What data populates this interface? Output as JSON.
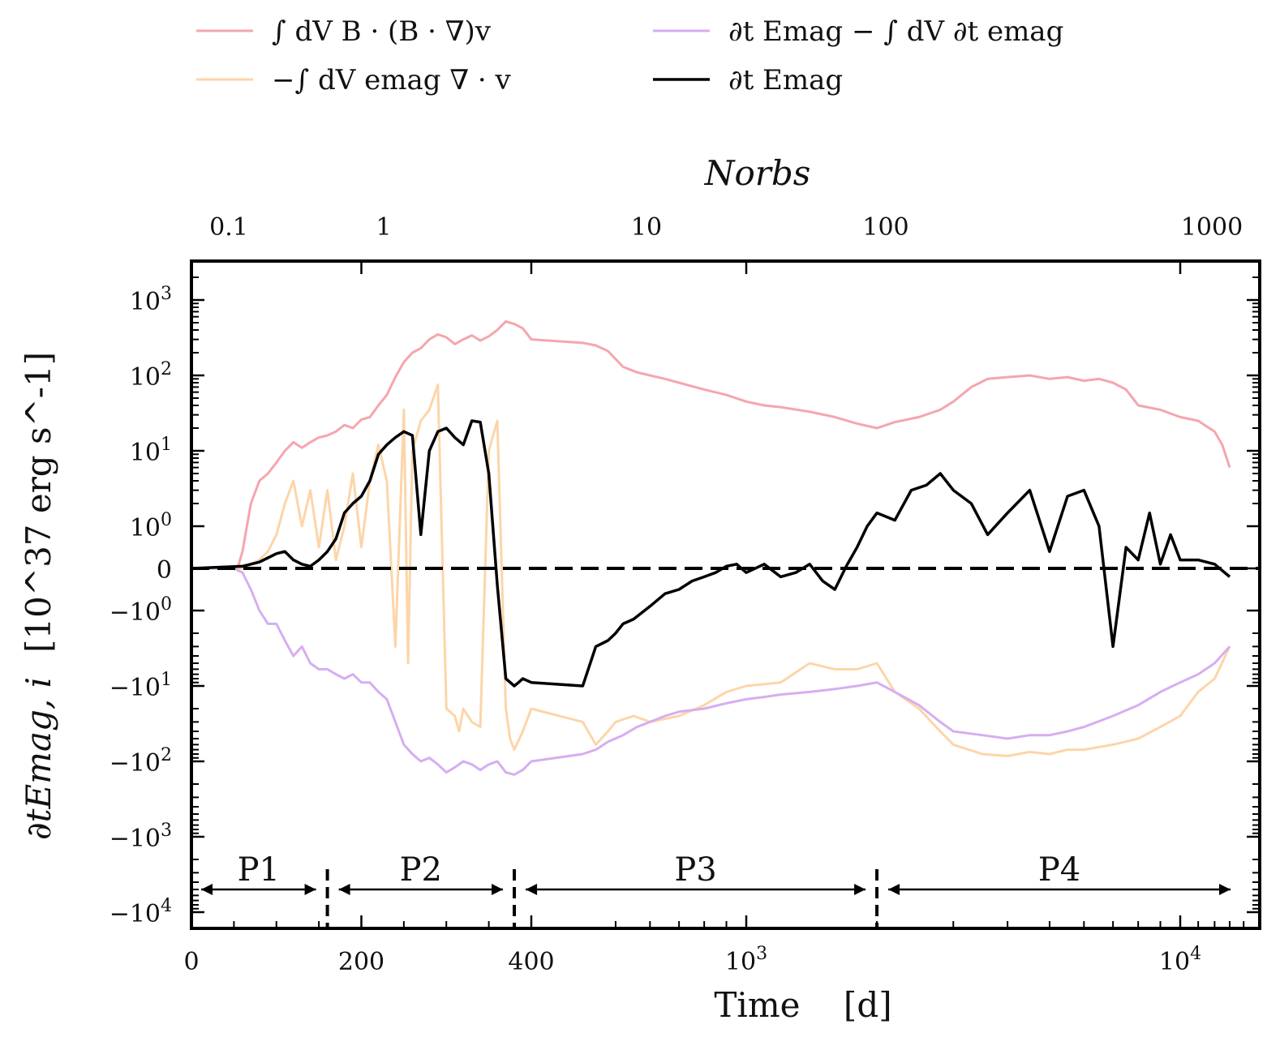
{
  "chart_data": {
    "type": "line",
    "title": "",
    "xlabel": "Time    [d]",
    "ylabel_main": "∂tEmag, i",
    "ylabel_units": "[10^37 erg s^-1]",
    "top_axis_label": "Norbs",
    "x_axis_note": "linear from 0 to 400 d, logarithmic above 400 d",
    "y_axis_note": "symmetric log; linear band between -1 and 1",
    "x_ticks": [
      {
        "value": 0,
        "label": "0"
      },
      {
        "value": 200,
        "label": "200"
      },
      {
        "value": 400,
        "label": "400"
      },
      {
        "value": 1000,
        "label": "10^3"
      },
      {
        "value": 10000,
        "label": "10^4"
      }
    ],
    "top_ticks": [
      {
        "value": 0.1,
        "label": "0.1"
      },
      {
        "value": 1,
        "label": "1"
      },
      {
        "value": 10,
        "label": "10"
      },
      {
        "value": 100,
        "label": "100"
      },
      {
        "value": 1000,
        "label": "1000"
      }
    ],
    "y_ticks": [
      {
        "value": 1000,
        "label": "10^3"
      },
      {
        "value": 100,
        "label": "10^2"
      },
      {
        "value": 10,
        "label": "10^1"
      },
      {
        "value": 1,
        "label": "10^0"
      },
      {
        "value": 0,
        "label": "0"
      },
      {
        "value": -1,
        "label": "-10^0"
      },
      {
        "value": -10,
        "label": "-10^1"
      },
      {
        "value": -100,
        "label": "-10^2"
      },
      {
        "value": -1000,
        "label": "-10^3"
      },
      {
        "value": -10000,
        "label": "-10^4"
      }
    ],
    "xlim": [
      0,
      14000
    ],
    "ylim": [
      -10000,
      2000
    ],
    "zero_line": {
      "style": "dashed",
      "color": "#000000"
    },
    "phases": [
      {
        "label": "P1",
        "start": 0,
        "end": 160
      },
      {
        "label": "P2",
        "start": 160,
        "end": 380
      },
      {
        "label": "P3",
        "start": 380,
        "end": 2000
      },
      {
        "label": "P4",
        "start": 2000,
        "end": 13000
      }
    ],
    "series": [
      {
        "name": "∫ dV B · (B · ∇)v",
        "color": "#f4a6ad",
        "x": [
          0,
          50,
          55,
          60,
          70,
          80,
          90,
          100,
          110,
          120,
          130,
          140,
          150,
          160,
          170,
          180,
          190,
          200,
          210,
          220,
          230,
          240,
          250,
          260,
          270,
          280,
          290,
          300,
          310,
          320,
          330,
          340,
          350,
          360,
          370,
          380,
          390,
          400,
          420,
          450,
          480,
          520,
          560,
          600,
          650,
          700,
          800,
          900,
          1000,
          1100,
          1200,
          1400,
          1600,
          1800,
          2000,
          2200,
          2500,
          2800,
          3000,
          3300,
          3600,
          4000,
          4500,
          5000,
          5500,
          6000,
          6500,
          7000,
          7500,
          8000,
          9000,
          10000,
          11000,
          12000,
          12500,
          13000
        ],
        "y": [
          0,
          0,
          0.05,
          0.4,
          2,
          4,
          5,
          7,
          10,
          13,
          11,
          13,
          15,
          16,
          18,
          22,
          20,
          26,
          28,
          40,
          55,
          95,
          150,
          200,
          230,
          300,
          350,
          320,
          260,
          300,
          340,
          290,
          330,
          400,
          520,
          480,
          420,
          300,
          270,
          250,
          210,
          130,
          110,
          100,
          90,
          80,
          65,
          55,
          45,
          40,
          38,
          33,
          28,
          23,
          20,
          24,
          28,
          35,
          45,
          70,
          90,
          95,
          100,
          90,
          95,
          85,
          90,
          80,
          65,
          40,
          35,
          28,
          25,
          18,
          12,
          6
        ]
      },
      {
        "name": "−∫ dV emag ∇ · v",
        "color": "#fcd5a9",
        "x": [
          0,
          50,
          60,
          70,
          80,
          90,
          100,
          110,
          120,
          130,
          140,
          150,
          160,
          170,
          180,
          190,
          200,
          210,
          220,
          230,
          240,
          250,
          255,
          260,
          270,
          280,
          290,
          300,
          310,
          315,
          320,
          330,
          340,
          350,
          360,
          370,
          375,
          380,
          390,
          400,
          420,
          450,
          480,
          500,
          550,
          600,
          700,
          800,
          900,
          1000,
          1200,
          1400,
          1600,
          1800,
          2000,
          2200,
          2500,
          2800,
          3000,
          3500,
          4000,
          4500,
          5000,
          5500,
          6000,
          7000,
          8000,
          9000,
          10000,
          11000,
          12000,
          13000
        ],
        "y": [
          0,
          0,
          0,
          0.1,
          0.2,
          0.4,
          0.8,
          2,
          4,
          1,
          3,
          0.5,
          3,
          0.2,
          1,
          5,
          0.5,
          4,
          12,
          4,
          -3,
          35,
          -5,
          10,
          25,
          35,
          75,
          -20,
          -25,
          -40,
          -20,
          -30,
          -35,
          10,
          25,
          -20,
          -50,
          -70,
          -40,
          -20,
          -30,
          -60,
          -40,
          -30,
          -25,
          -30,
          -25,
          -18,
          -12,
          -10,
          -9,
          -5,
          -6,
          -6,
          -5,
          -12,
          -20,
          -40,
          -60,
          -80,
          -85,
          -75,
          -80,
          -70,
          -70,
          -60,
          -50,
          -35,
          -25,
          -12,
          -8,
          -3
        ]
      },
      {
        "name": "∂t Emag − ∫ dV ∂t emag",
        "color": "#d6aef0",
        "x": [
          0,
          50,
          60,
          70,
          80,
          90,
          100,
          110,
          120,
          130,
          140,
          150,
          160,
          170,
          180,
          190,
          200,
          210,
          220,
          230,
          240,
          250,
          260,
          270,
          280,
          290,
          300,
          310,
          320,
          330,
          340,
          350,
          360,
          370,
          380,
          390,
          400,
          420,
          450,
          480,
          520,
          560,
          600,
          650,
          700,
          800,
          900,
          1000,
          1100,
          1200,
          1400,
          1600,
          1800,
          2000,
          2200,
          2500,
          2800,
          3000,
          3500,
          4000,
          4500,
          5000,
          5500,
          6000,
          7000,
          8000,
          9000,
          10000,
          11000,
          12000,
          13000
        ],
        "y": [
          0,
          0,
          -0.1,
          -0.5,
          -1,
          -1.5,
          -1.5,
          -2.5,
          -4,
          -3,
          -5,
          -6,
          -6,
          -7,
          -8,
          -7,
          -9,
          -9,
          -12,
          -15,
          -30,
          -60,
          -80,
          -100,
          -90,
          -110,
          -140,
          -120,
          -100,
          -110,
          -130,
          -110,
          -100,
          -140,
          -150,
          -130,
          -100,
          -80,
          -70,
          -55,
          -45,
          -35,
          -30,
          -25,
          -22,
          -20,
          -17,
          -15,
          -14,
          -13,
          -12,
          -11,
          -10,
          -9,
          -12,
          -18,
          -30,
          -40,
          -45,
          -50,
          -45,
          -45,
          -40,
          -35,
          -25,
          -18,
          -12,
          -9,
          -7,
          -5,
          -3
        ]
      },
      {
        "name": "∂t Emag",
        "color": "#000000",
        "x": [
          0,
          60,
          70,
          80,
          90,
          100,
          110,
          120,
          130,
          140,
          150,
          160,
          170,
          180,
          190,
          200,
          210,
          220,
          230,
          240,
          250,
          260,
          270,
          280,
          290,
          300,
          310,
          320,
          330,
          340,
          350,
          360,
          370,
          380,
          385,
          390,
          400,
          420,
          450,
          480,
          500,
          520,
          550,
          600,
          650,
          700,
          750,
          800,
          850,
          900,
          950,
          1000,
          1100,
          1200,
          1300,
          1400,
          1500,
          1600,
          1700,
          1800,
          1900,
          2000,
          2200,
          2400,
          2600,
          2800,
          3000,
          3300,
          3600,
          4000,
          4500,
          5000,
          5500,
          6000,
          6500,
          7000,
          7500,
          8000,
          8500,
          9000,
          9500,
          10000,
          11000,
          12000,
          13000
        ],
        "y": [
          0,
          0.05,
          0.1,
          0.15,
          0.25,
          0.35,
          0.4,
          0.2,
          0.1,
          0.05,
          0.2,
          0.4,
          0.7,
          1.5,
          2,
          2.5,
          4,
          9,
          12,
          15,
          18,
          16,
          0.8,
          10,
          18,
          20,
          15,
          12,
          25,
          24,
          5,
          -0.4,
          -8,
          -10,
          -9,
          -8,
          -9,
          -10,
          -3,
          -2.5,
          -2,
          -1.5,
          -1.3,
          -0.9,
          -0.6,
          -0.5,
          -0.3,
          -0.2,
          -0.1,
          0.05,
          0.1,
          -0.1,
          0.1,
          -0.2,
          -0.1,
          0.1,
          -0.3,
          -0.5,
          0.05,
          0.5,
          1,
          1.5,
          1.2,
          3,
          3.5,
          5,
          3,
          2,
          0.8,
          1.5,
          3,
          0.4,
          2.5,
          3,
          1,
          -3,
          0.5,
          0.2,
          1.5,
          0.1,
          0.8,
          0.2,
          0.2,
          0.1,
          -0.2
        ]
      }
    ]
  },
  "legend": {
    "entries": [
      {
        "label": "∫ dV B · (B · ∇)v",
        "color": "#f4a6ad"
      },
      {
        "label": "−∫ dV emag ∇ · v",
        "color": "#fcd5a9"
      },
      {
        "label": "∂t Emag − ∫ dV ∂t emag",
        "color": "#d6aef0"
      },
      {
        "label": "∂t Emag",
        "color": "#000000"
      }
    ]
  }
}
